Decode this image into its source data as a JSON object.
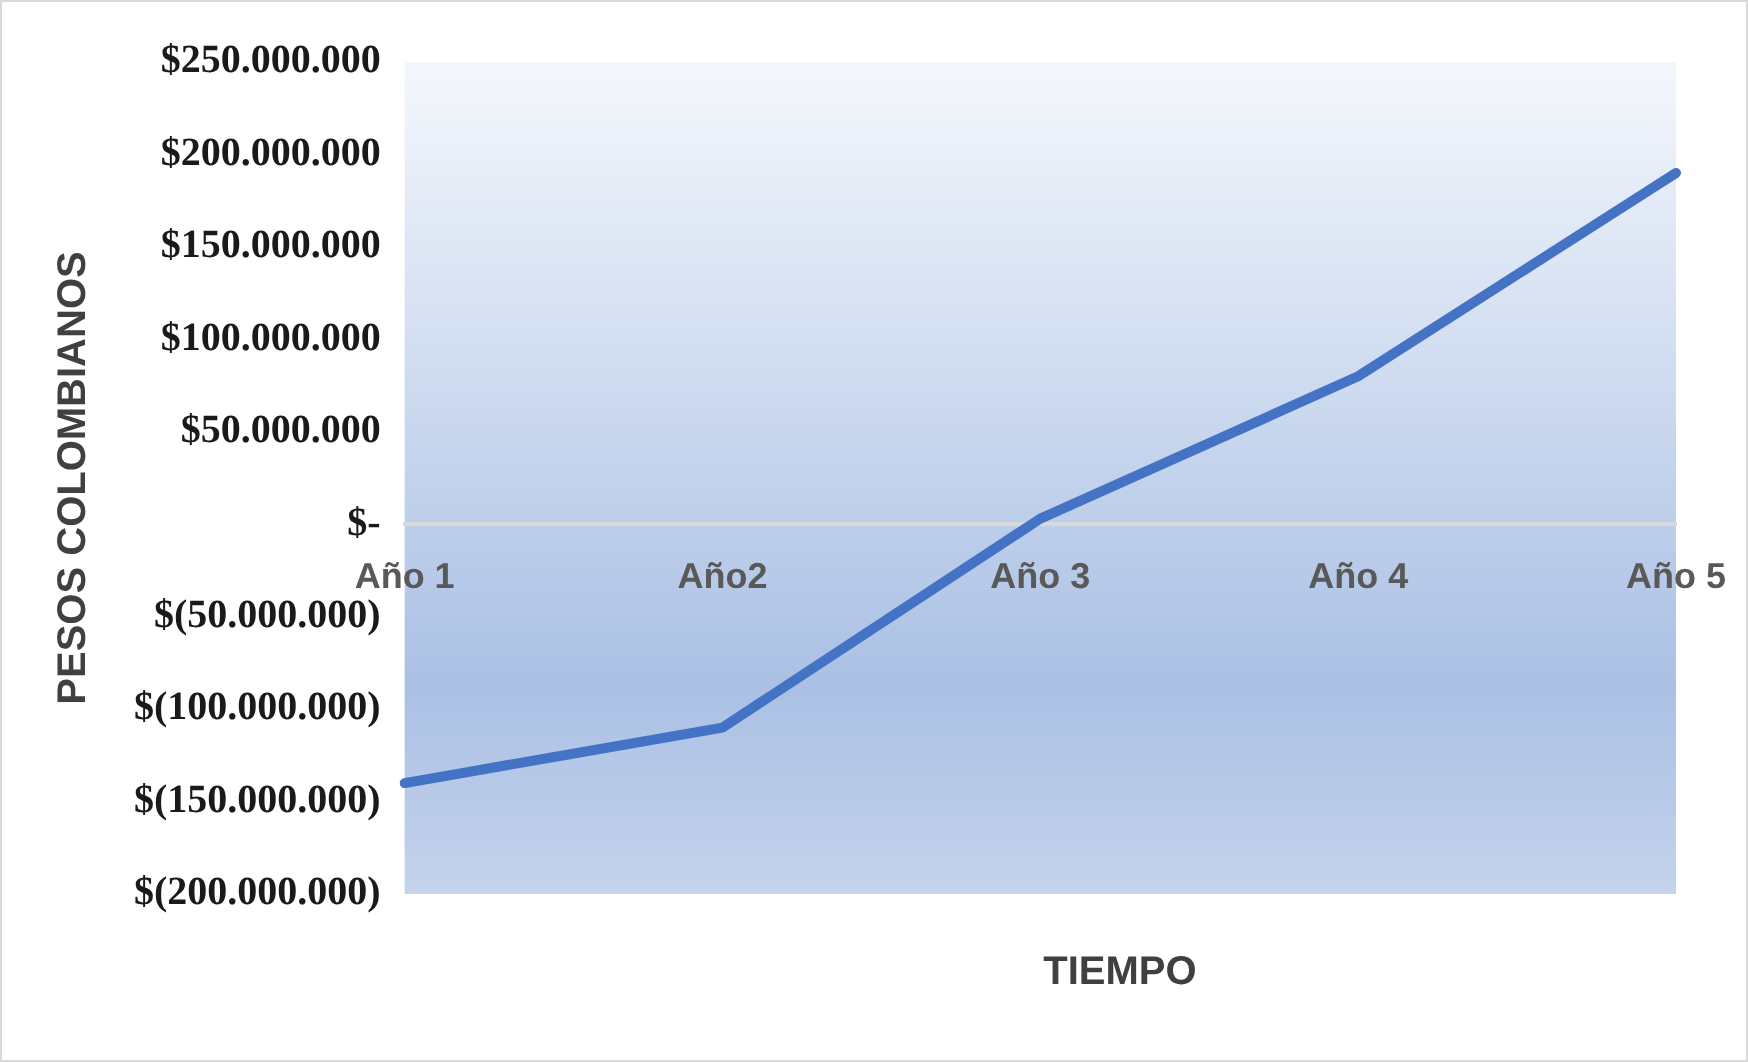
{
  "chart_data": {
    "type": "line",
    "xlabel": "TIEMPO",
    "ylabel": "PESOS COLOMBIANOS",
    "categories": [
      "Año 1",
      "Año2",
      "Año 3",
      "Año 4",
      "Año 5"
    ],
    "series": [
      {
        "color": "#4472c4",
        "values": [
          -140000000,
          -110000000,
          3000000,
          80000000,
          190000000
        ]
      }
    ],
    "ylim": [
      -200000000,
      250000000
    ],
    "yticks": [
      {
        "value": -200000000,
        "label": "$(200.000.000)"
      },
      {
        "value": -150000000,
        "label": "$(150.000.000)"
      },
      {
        "value": -100000000,
        "label": "$(100.000.000)"
      },
      {
        "value": -50000000,
        "label": "$(50.000.000)"
      },
      {
        "value": 0,
        "label": "$-"
      },
      {
        "value": 50000000,
        "label": "$50.000.000"
      },
      {
        "value": 100000000,
        "label": "$100.000.000"
      },
      {
        "value": 150000000,
        "label": "$150.000.000"
      },
      {
        "value": 200000000,
        "label": "$200.000.000"
      },
      {
        "value": 250000000,
        "label": "$250.000.000"
      }
    ],
    "grid": false,
    "legend": false,
    "marker": "none",
    "line_style": "solid"
  }
}
